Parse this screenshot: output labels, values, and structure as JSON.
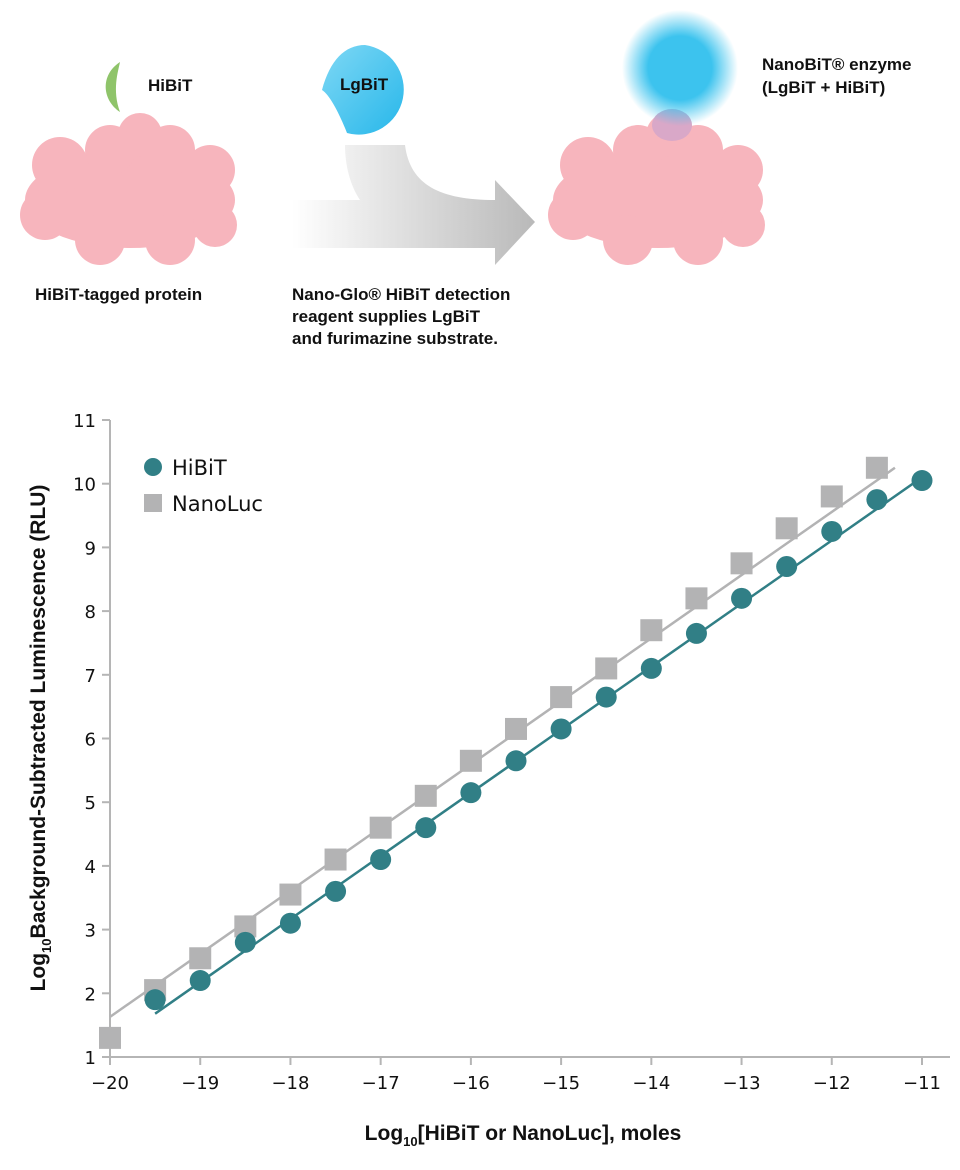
{
  "diagram": {
    "hibit_tag_label": "HiBiT",
    "lgbit_label": "LgBiT",
    "enzyme_label_line1": "NanoBiT® enzyme",
    "enzyme_label_line2": "(LgBiT + HiBiT)",
    "protein_caption": "HiBiT-tagged protein",
    "reagent_caption_line1": "Nano-Glo® HiBiT detection",
    "reagent_caption_line2": "reagent supplies LgBiT",
    "reagent_caption_line3": "and furimazine substrate.",
    "colors": {
      "protein": "#f7b5bd",
      "leaf": "#8fc46a",
      "lgbit": "#3cc3ee",
      "arrow": "#c9c9c9"
    }
  },
  "chart_data": {
    "type": "scatter",
    "xlabel": "Log10[HiBiT or NanoLuc], moles",
    "ylabel": "Log10Background-Subtracted Luminescence (RLU)",
    "xlim": [
      -20,
      -11
    ],
    "ylim": [
      1,
      11
    ],
    "xticks": [
      -20,
      -19,
      -18,
      -17,
      -16,
      -15,
      -14,
      -13,
      -12,
      -11
    ],
    "xtick_labels": [
      "−20",
      "−19",
      "−18",
      "−17",
      "−16",
      "−15",
      "−14",
      "−13",
      "−12",
      "−11"
    ],
    "yticks": [
      1,
      2,
      3,
      4,
      5,
      6,
      7,
      8,
      9,
      10,
      11
    ],
    "legend_position": "top-left",
    "grid": false,
    "series": [
      {
        "name": "HiBiT",
        "marker": "circle",
        "color": "#317f86",
        "x": [
          -19.5,
          -19,
          -18.5,
          -18,
          -17.5,
          -17,
          -16.5,
          -16,
          -15.5,
          -15,
          -14.5,
          -14,
          -13.5,
          -13,
          -12.5,
          -12,
          -11.5,
          -11
        ],
        "y": [
          1.9,
          2.2,
          2.8,
          3.1,
          3.6,
          4.1,
          4.6,
          5.15,
          5.65,
          6.15,
          6.65,
          7.1,
          7.65,
          8.2,
          8.7,
          9.25,
          9.75,
          10.05
        ],
        "fit": [
          [
            -19.5,
            1.68
          ],
          [
            -11,
            10.1
          ]
        ]
      },
      {
        "name": "NanoLuc",
        "marker": "square",
        "color": "#b3b3b4",
        "x": [
          -20,
          -19.5,
          -19,
          -18.5,
          -18,
          -17.5,
          -17,
          -16.5,
          -16,
          -15.5,
          -15,
          -14.5,
          -14,
          -13.5,
          -13,
          -12.5,
          -12,
          -11.5
        ],
        "y": [
          1.3,
          2.05,
          2.55,
          3.05,
          3.55,
          4.1,
          4.6,
          5.1,
          5.65,
          6.15,
          6.65,
          7.1,
          7.7,
          8.2,
          8.75,
          9.3,
          9.8,
          10.25
        ],
        "fit": [
          [
            -20,
            1.63
          ],
          [
            -11.3,
            10.25
          ]
        ]
      }
    ]
  }
}
